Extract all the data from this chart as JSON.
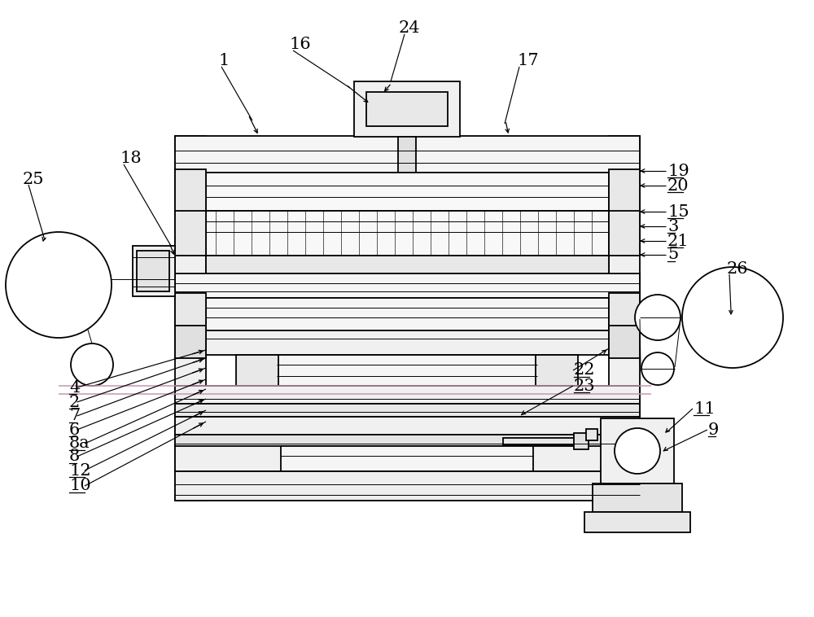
{
  "bg": "#ffffff",
  "lc": "#000000",
  "gc": "#aaaaaa",
  "pink": "#c896b4",
  "figw": 10.0,
  "figh": 7.58,
  "dpi": 100,
  "lw_main": 1.3,
  "lw_thin": 0.7,
  "lw_med": 1.0,
  "fs_label": 15
}
